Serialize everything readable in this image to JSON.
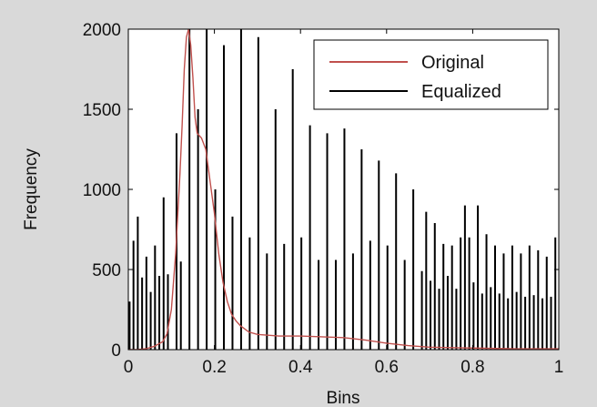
{
  "chart_data": {
    "type": "line",
    "title": "",
    "xlabel": "Bins",
    "ylabel": "Frequency",
    "xlim": [
      0,
      1
    ],
    "ylim": [
      0,
      2000
    ],
    "xticks": [
      0,
      0.2,
      0.4,
      0.6,
      0.8,
      1
    ],
    "xtick_labels": [
      "0",
      "0.2",
      "0.4",
      "0.6",
      "0.8",
      "1"
    ],
    "yticks": [
      0,
      500,
      1000,
      1500,
      2000
    ],
    "ytick_labels": [
      "0",
      "500",
      "1000",
      "1500",
      "2000"
    ],
    "grid": false,
    "legend_position": "top-right",
    "colors": {
      "original": "#c0504d",
      "equalized": "#000000",
      "background": "#d9d9d9",
      "plot_area": "#ffffff"
    },
    "series": [
      {
        "name": "Original",
        "style": "line",
        "color": "#c0504d",
        "x": [
          0,
          0.02,
          0.04,
          0.06,
          0.08,
          0.09,
          0.1,
          0.11,
          0.12,
          0.125,
          0.13,
          0.135,
          0.14,
          0.145,
          0.15,
          0.155,
          0.16,
          0.17,
          0.18,
          0.19,
          0.2,
          0.21,
          0.22,
          0.23,
          0.24,
          0.25,
          0.26,
          0.28,
          0.3,
          0.35,
          0.4,
          0.45,
          0.5,
          0.55,
          0.6,
          0.65,
          0.7,
          0.8,
          0.9,
          1.0
        ],
        "y": [
          0,
          0,
          5,
          20,
          50,
          100,
          250,
          600,
          1100,
          1400,
          1750,
          1950,
          2000,
          1900,
          1700,
          1450,
          1350,
          1320,
          1250,
          1050,
          850,
          600,
          420,
          300,
          220,
          180,
          150,
          110,
          95,
          85,
          85,
          80,
          75,
          60,
          40,
          25,
          15,
          10,
          5,
          5
        ]
      },
      {
        "name": "Equalized",
        "style": "stem",
        "color": "#000000",
        "x": [
          0.003,
          0.012,
          0.022,
          0.032,
          0.042,
          0.052,
          0.062,
          0.072,
          0.082,
          0.092,
          0.112,
          0.122,
          0.142,
          0.162,
          0.182,
          0.202,
          0.222,
          0.242,
          0.262,
          0.282,
          0.302,
          0.322,
          0.342,
          0.362,
          0.382,
          0.402,
          0.422,
          0.442,
          0.462,
          0.482,
          0.502,
          0.522,
          0.542,
          0.562,
          0.582,
          0.602,
          0.622,
          0.642,
          0.662,
          0.682,
          0.692,
          0.702,
          0.712,
          0.722,
          0.732,
          0.742,
          0.752,
          0.762,
          0.772,
          0.782,
          0.792,
          0.802,
          0.812,
          0.822,
          0.832,
          0.842,
          0.852,
          0.862,
          0.872,
          0.882,
          0.892,
          0.902,
          0.912,
          0.922,
          0.932,
          0.942,
          0.952,
          0.962,
          0.972,
          0.982,
          0.992
        ],
        "y": [
          300,
          680,
          830,
          450,
          580,
          360,
          650,
          460,
          950,
          470,
          1350,
          550,
          2000,
          1500,
          2000,
          1000,
          1900,
          830,
          2000,
          700,
          1950,
          600,
          1500,
          660,
          1750,
          700,
          1400,
          560,
          1350,
          560,
          1380,
          600,
          1250,
          680,
          1180,
          650,
          1100,
          560,
          1000,
          490,
          860,
          430,
          790,
          380,
          660,
          460,
          650,
          380,
          700,
          900,
          700,
          420,
          900,
          350,
          720,
          390,
          650,
          350,
          600,
          320,
          650,
          360,
          600,
          330,
          650,
          340,
          620,
          320,
          580,
          330,
          700
        ]
      }
    ]
  }
}
